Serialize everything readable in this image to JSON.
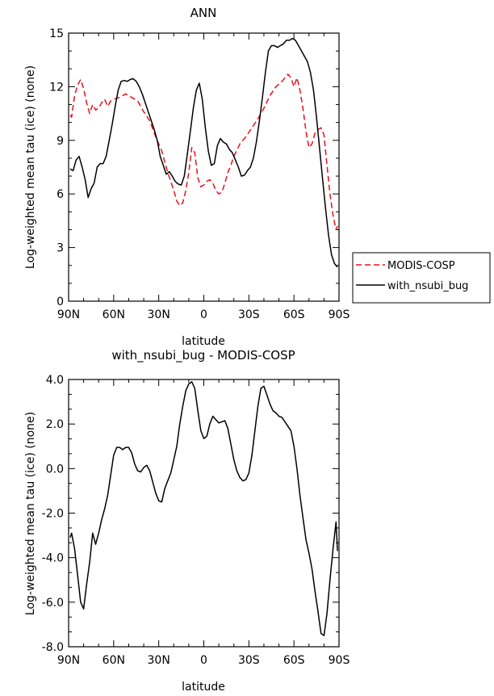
{
  "chart_data": [
    {
      "type": "line",
      "title": "ANN",
      "xlabel": "latitude",
      "ylabel": "Log-weighted mean tau (ice) (none)",
      "xlim": [
        90,
        -90
      ],
      "ylim": [
        0,
        15
      ],
      "x_ticks": [
        90,
        60,
        30,
        0,
        -30,
        -60,
        -90
      ],
      "x_tick_labels": [
        "90N",
        "60N",
        "30N",
        "0",
        "30S",
        "60S",
        "90S"
      ],
      "y_ticks": [
        0,
        3,
        6,
        9,
        12,
        15
      ],
      "y_tick_labels": [
        "0",
        "3",
        "6",
        "9",
        "12",
        "15"
      ],
      "legend_position": "right",
      "series": [
        {
          "name": "MODIS-COSP",
          "color": "#e8101a",
          "dash": "dashed",
          "x": [
            89,
            88,
            86,
            84,
            82,
            80,
            78,
            76,
            74,
            72,
            70,
            68,
            66,
            64,
            62,
            60,
            56,
            52,
            48,
            44,
            40,
            36,
            32,
            28,
            24,
            20,
            18,
            16,
            14,
            12,
            10,
            8,
            6,
            4,
            2,
            0,
            -2,
            -4,
            -6,
            -8,
            -10,
            -12,
            -14,
            -16,
            -18,
            -20,
            -24,
            -28,
            -32,
            -36,
            -40,
            -44,
            -48,
            -52,
            -56,
            -58,
            -60,
            -62,
            -64,
            -66,
            -68,
            -70,
            -72,
            -74,
            -76,
            -78,
            -80,
            -82,
            -84,
            -86,
            -88,
            -89
          ],
          "y": [
            10.4,
            10.3,
            11.5,
            12.1,
            12.4,
            11.9,
            11.1,
            10.5,
            11.0,
            10.7,
            10.8,
            11.1,
            11.3,
            10.9,
            11.2,
            11.3,
            11.4,
            11.6,
            11.4,
            11.2,
            10.6,
            10.1,
            9.2,
            8.4,
            7.2,
            6.2,
            5.6,
            5.35,
            5.5,
            6.2,
            7.2,
            8.6,
            8.3,
            6.9,
            6.4,
            6.5,
            6.7,
            6.8,
            6.6,
            6.2,
            6.0,
            6.1,
            6.6,
            7.2,
            7.6,
            8.1,
            8.8,
            9.2,
            9.7,
            10.2,
            10.8,
            11.5,
            12.0,
            12.3,
            12.7,
            12.5,
            12.0,
            12.5,
            11.8,
            10.8,
            9.5,
            8.6,
            8.8,
            9.4,
            9.6,
            9.7,
            9.3,
            7.6,
            6.0,
            4.8,
            4.0,
            4.2
          ]
        },
        {
          "name": "with_nsubi_bug",
          "color": "#000000",
          "dash": "solid",
          "x": [
            89,
            87,
            85,
            83,
            81,
            79,
            77,
            75,
            73,
            71,
            69,
            67,
            65,
            63,
            61,
            59,
            57,
            55,
            53,
            51,
            49,
            47,
            45,
            43,
            41,
            39,
            37,
            35,
            33,
            31,
            29,
            27,
            25,
            23,
            21,
            19,
            17,
            15,
            13,
            11,
            9,
            7,
            5,
            3,
            1,
            -1,
            -3,
            -5,
            -7,
            -9,
            -11,
            -13,
            -15,
            -17,
            -19,
            -21,
            -23,
            -25,
            -27,
            -29,
            -31,
            -33,
            -35,
            -37,
            -39,
            -41,
            -43,
            -45,
            -47,
            -49,
            -51,
            -53,
            -55,
            -57,
            -59,
            -61,
            -63,
            -65,
            -67,
            -69,
            -71,
            -73,
            -75,
            -77,
            -79,
            -81,
            -83,
            -85,
            -87,
            -89
          ],
          "y": [
            7.4,
            7.3,
            7.9,
            8.1,
            7.5,
            6.8,
            5.8,
            6.3,
            6.6,
            7.5,
            7.7,
            7.7,
            8.1,
            9.0,
            9.9,
            10.9,
            11.8,
            12.3,
            12.35,
            12.3,
            12.4,
            12.45,
            12.3,
            12.0,
            11.6,
            11.1,
            10.6,
            10.1,
            9.6,
            9.0,
            8.1,
            7.6,
            7.1,
            7.25,
            7.0,
            6.7,
            6.55,
            6.5,
            7.0,
            8.2,
            9.5,
            10.8,
            11.8,
            12.2,
            11.3,
            9.7,
            8.4,
            7.6,
            7.7,
            8.7,
            9.1,
            8.9,
            8.8,
            8.5,
            8.3,
            7.9,
            7.5,
            7.0,
            7.05,
            7.3,
            7.5,
            8.0,
            8.9,
            10.1,
            11.4,
            12.8,
            14.0,
            14.3,
            14.3,
            14.2,
            14.3,
            14.4,
            14.6,
            14.6,
            14.7,
            14.6,
            14.3,
            14.0,
            13.7,
            13.4,
            12.8,
            11.8,
            10.3,
            8.6,
            6.9,
            5.2,
            3.7,
            2.6,
            2.1,
            1.9
          ]
        }
      ]
    },
    {
      "type": "line",
      "title": "with_nsubi_bug - MODIS-COSP",
      "xlabel": "latitude",
      "ylabel": "Log-weighted mean tau (ice) (none)",
      "xlim": [
        90,
        -90
      ],
      "ylim": [
        -8,
        4
      ],
      "x_ticks": [
        90,
        60,
        30,
        0,
        -30,
        -60,
        -90
      ],
      "x_tick_labels": [
        "90N",
        "60N",
        "30N",
        "0",
        "30S",
        "60S",
        "90S"
      ],
      "y_ticks": [
        -8,
        -6,
        -4,
        -2,
        0,
        2,
        4
      ],
      "y_tick_labels": [
        "-8.0",
        "-6.0",
        "-4.0",
        "-2.0",
        "0.0",
        "2.0",
        "4.0"
      ],
      "series": [
        {
          "name": "with_nsubi_bug - MODIS-COSP",
          "color": "#000000",
          "dash": "solid",
          "x": [
            89,
            88,
            86,
            84,
            82,
            80,
            78,
            76,
            74,
            72,
            70,
            68,
            66,
            64,
            62,
            60,
            58,
            56,
            54,
            52,
            50,
            48,
            46,
            44,
            42,
            40,
            38,
            36,
            34,
            32,
            30,
            28,
            26,
            24,
            22,
            20,
            18,
            16,
            14,
            12,
            10,
            8,
            6,
            4,
            2,
            0,
            -2,
            -4,
            -6,
            -8,
            -10,
            -12,
            -14,
            -16,
            -18,
            -20,
            -22,
            -24,
            -26,
            -28,
            -30,
            -32,
            -34,
            -36,
            -38,
            -40,
            -42,
            -44,
            -46,
            -48,
            -50,
            -52,
            -54,
            -56,
            -58,
            -60,
            -62,
            -64,
            -66,
            -68,
            -70,
            -72,
            -74,
            -76,
            -78,
            -80,
            -82,
            -84,
            -86,
            -88,
            -89
          ],
          "y": [
            -3.1,
            -2.9,
            -3.6,
            -4.8,
            -6.0,
            -6.3,
            -5.2,
            -4.2,
            -2.9,
            -3.4,
            -2.9,
            -2.3,
            -1.8,
            -1.2,
            -0.3,
            0.6,
            0.95,
            0.95,
            0.85,
            0.95,
            0.95,
            0.7,
            0.2,
            -0.1,
            -0.15,
            0.05,
            0.15,
            -0.1,
            -0.6,
            -1.1,
            -1.45,
            -1.5,
            -0.9,
            -0.55,
            -0.2,
            0.4,
            1.0,
            2.0,
            2.8,
            3.5,
            3.8,
            3.9,
            3.6,
            2.6,
            1.7,
            1.35,
            1.45,
            2.0,
            2.35,
            2.2,
            2.05,
            2.1,
            2.15,
            1.8,
            1.1,
            0.4,
            -0.1,
            -0.4,
            -0.55,
            -0.5,
            -0.2,
            0.6,
            1.7,
            2.8,
            3.6,
            3.7,
            3.3,
            2.9,
            2.6,
            2.5,
            2.35,
            2.3,
            2.1,
            1.9,
            1.7,
            1.0,
            0.0,
            -1.2,
            -2.2,
            -3.2,
            -3.8,
            -4.5,
            -5.5,
            -6.4,
            -7.4,
            -7.5,
            -6.5,
            -5.0,
            -3.6,
            -2.4,
            -3.7
          ]
        }
      ]
    }
  ]
}
